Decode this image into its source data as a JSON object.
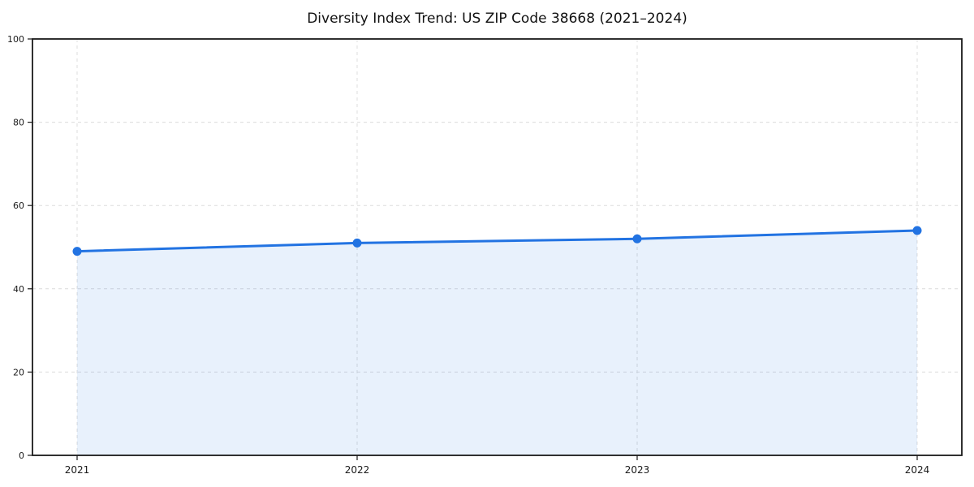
{
  "chart_data": {
    "type": "line",
    "area_fill": true,
    "title": "Diversity Index Trend: US ZIP Code 38668 (2021–2024)",
    "categories": [
      "2021",
      "2022",
      "2023",
      "2024"
    ],
    "series": [
      {
        "name": "Diversity Index",
        "values": [
          49,
          51,
          52,
          54
        ]
      }
    ],
    "xlabel": "",
    "ylabel": "",
    "ylim": [
      0,
      100
    ],
    "yticks": [
      0,
      20,
      40,
      60,
      80,
      100
    ],
    "grid": "dashed, horizontal and vertical",
    "legend": "none",
    "colors": {
      "line": "#2273e2",
      "marker": "#2273e2",
      "area_fill": "#e8f0fb",
      "gridline": "#dcdcdc",
      "axis": "#1a1a1a",
      "background": "#ffffff"
    }
  }
}
